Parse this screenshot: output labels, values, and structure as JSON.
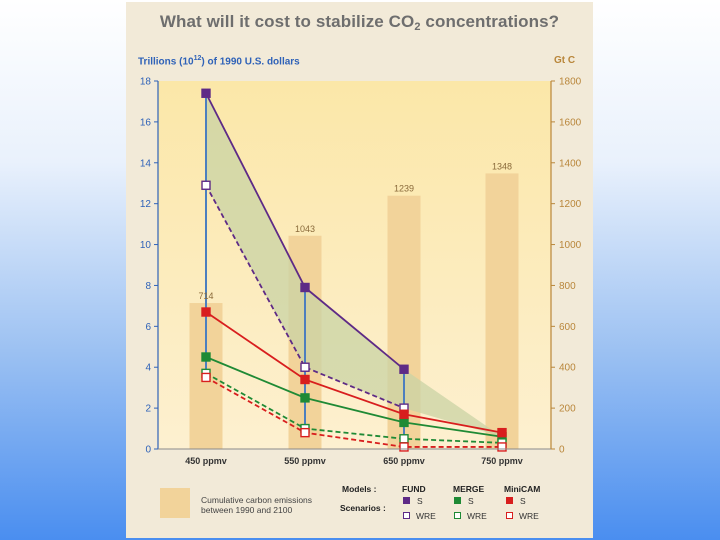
{
  "title_prefix": "What will it cost to stabilize CO",
  "title_sub": "2",
  "title_suffix": " concentrations?",
  "left_axis": {
    "prefix": "Trillions (10",
    "exp": "12",
    "suffix": ") of 1990 U.S. dollars"
  },
  "right_axis_label": "Gt C",
  "legend": {
    "bar_text_line1": "Cumulative carbon emissions",
    "bar_text_line2": "between 1990 and 2100",
    "models_label": "Models :",
    "scenarios_label": "Scenarios :",
    "models": [
      "FUND",
      "MERGE",
      "MiniCAM"
    ],
    "s_label": "S",
    "wre_label": "WRE"
  },
  "colors": {
    "panel_bg": "#f2ead8",
    "plot_bg_top": "#fbe7a8",
    "plot_bg_bottom": "#fdf0d0",
    "bar": "#f2d39a",
    "fund": "#5e2a86",
    "merge": "#1f8a35",
    "minicam": "#d81e1e",
    "left_axis": "#2f62b8",
    "right_axis": "#b9863a",
    "shading": "#c9d3a4",
    "connector": "#4c7fbf"
  },
  "chart_data": {
    "type": "line",
    "title": "What will it cost to stabilize CO2 concentrations?",
    "categories": [
      "450 ppmv",
      "550 ppmv",
      "650 ppmv",
      "750 ppmv"
    ],
    "left_ylabel": "Trillions (10^12) of 1990 U.S. dollars",
    "left_ylim": [
      0,
      18
    ],
    "left_ticks": [
      0,
      2,
      4,
      6,
      8,
      10,
      12,
      14,
      16,
      18
    ],
    "right_ylabel": "Gt C",
    "right_ylim": [
      0,
      1800
    ],
    "right_ticks": [
      0,
      200,
      400,
      600,
      800,
      1000,
      1200,
      1400,
      1600,
      1800
    ],
    "bars": {
      "name": "Cumulative carbon emissions between 1990 and 2100",
      "axis": "right",
      "values": [
        714,
        1043,
        1239,
        1348
      ]
    },
    "series": [
      {
        "name": "FUND S",
        "model": "FUND",
        "scenario": "S",
        "values": [
          17.4,
          7.9,
          3.9,
          null
        ]
      },
      {
        "name": "FUND WRE",
        "model": "FUND",
        "scenario": "WRE",
        "values": [
          12.9,
          4.0,
          2.0,
          null
        ]
      },
      {
        "name": "MERGE S",
        "model": "MERGE",
        "scenario": "S",
        "values": [
          4.5,
          2.5,
          1.3,
          0.6
        ]
      },
      {
        "name": "MERGE WRE",
        "model": "MERGE",
        "scenario": "WRE",
        "values": [
          3.7,
          1.0,
          0.5,
          0.3
        ]
      },
      {
        "name": "MiniCAM S",
        "model": "MiniCAM",
        "scenario": "S",
        "values": [
          6.7,
          3.4,
          1.7,
          0.8
        ]
      },
      {
        "name": "MiniCAM WRE",
        "model": "MiniCAM",
        "scenario": "WRE",
        "values": [
          3.5,
          0.8,
          0.1,
          0.1
        ]
      }
    ]
  }
}
